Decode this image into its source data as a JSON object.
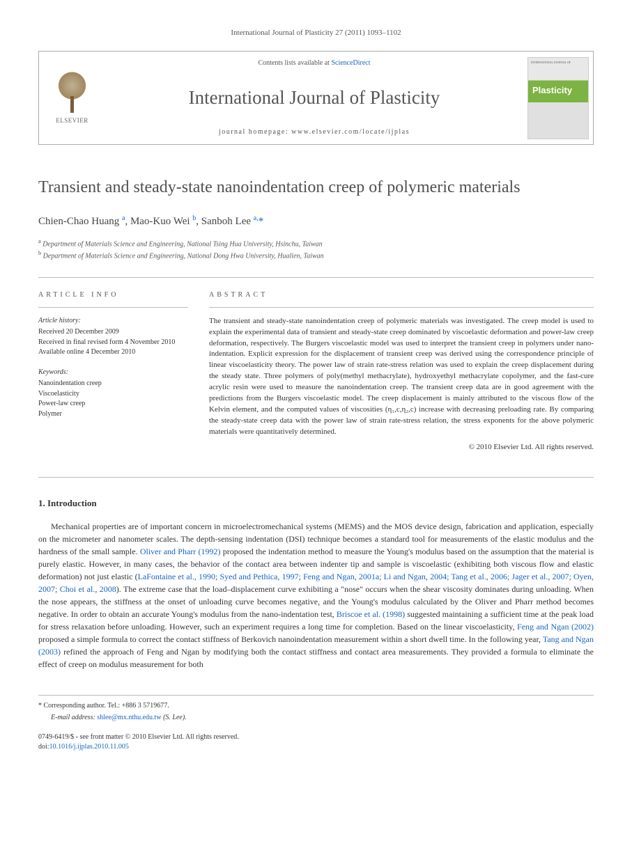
{
  "citation": "International Journal of Plasticity 27 (2011) 1093–1102",
  "header": {
    "contents_prefix": "Contents lists available at ",
    "contents_link": "ScienceDirect",
    "journal_name": "International Journal of Plasticity",
    "homepage_label": "journal homepage: www.elsevier.com/locate/ijplas",
    "elsevier_label": "ELSEVIER",
    "cover_brand": "Plasticity"
  },
  "article": {
    "title": "Transient and steady-state nanoindentation creep of polymeric materials",
    "authors_html": "Chien-Chao Huang <sup>a</sup>, Mao-Kuo Wei <sup>b</sup>, Sanboh Lee <sup>a,</sup><a href=\"#\">*</a>",
    "affiliations": [
      {
        "sup": "a",
        "text": "Department of Materials Science and Engineering, National Tsing Hua University, Hsinchu, Taiwan"
      },
      {
        "sup": "b",
        "text": "Department of Materials Science and Engineering, National Dong Hwa University, Hualien, Taiwan"
      }
    ]
  },
  "info": {
    "heading": "ARTICLE INFO",
    "history_label": "Article history:",
    "history": [
      "Received 20 December 2009",
      "Received in final revised form 4 November 2010",
      "Available online 4 December 2010"
    ],
    "keywords_label": "Keywords:",
    "keywords": [
      "Nanoindentation creep",
      "Viscoelasticity",
      "Power-law creep",
      "Polymer"
    ]
  },
  "abstract": {
    "heading": "ABSTRACT",
    "text": "The transient and steady-state nanoindentation creep of polymeric materials was investigated. The creep model is used to explain the experimental data of transient and steady-state creep dominated by viscoelastic deformation and power-law creep deformation, respectively. The Burgers viscoelastic model was used to interpret the transient creep in polymers under nano-indentation. Explicit expression for the displacement of transient creep was derived using the correspondence principle of linear viscoelasticity theory. The power law of strain rate-stress relation was used to explain the creep displacement during the steady state. Three polymers of poly(methyl methacrylate), hydroxyethyl methacrylate copolymer, and the fast-cure acrylic resin were used to measure the nanoindentation creep. The transient creep data are in good agreement with the predictions from the Burgers viscoelastic model. The creep displacement is mainly attributed to the viscous flow of the Kelvin element, and the computed values of viscosities (η₁,c,η₂,c) increase with decreasing preloading rate. By comparing the steady-state creep data with the power law of strain rate-stress relation, the stress exponents for the above polymeric materials were quantitatively determined.",
    "copyright": "© 2010 Elsevier Ltd. All rights reserved."
  },
  "sections": {
    "intro_heading": "1. Introduction",
    "intro_text": "Mechanical properties are of important concern in microelectromechanical systems (MEMS) and the MOS device design, fabrication and application, especially on the micrometer and nanometer scales. The depth-sensing indentation (DSI) technique becomes a standard tool for measurements of the elastic modulus and the hardness of the small sample. <a href=\"#\">Oliver and Pharr (1992)</a> proposed the indentation method to measure the Young's modulus based on the assumption that the material is purely elastic. However, in many cases, the behavior of the contact area between indenter tip and sample is viscoelastic (exhibiting both viscous flow and elastic deformation) not just elastic (<a href=\"#\">LaFontaine et al., 1990; Syed and Pethica, 1997; Feng and Ngan, 2001a; Li and Ngan, 2004; Tang et al., 2006; Jager et al., 2007; Oyen, 2007; Choi et al., 2008</a>). The extreme case that the load–displacement curve exhibiting a \"nose\" occurs when the shear viscosity dominates during unloading. When the nose appears, the stiffness at the onset of unloading curve becomes negative, and the Young's modulus calculated by the Oliver and Pharr method becomes negative. In order to obtain an accurate Young's modulus from the nano-indentation test, <a href=\"#\">Briscoe et al. (1998)</a> suggested maintaining a sufficient time at the peak load for stress relaxation before unloading. However, such an experiment requires a long time for completion. Based on the linear viscoelasticity, <a href=\"#\">Feng and Ngan (2002)</a> proposed a simple formula to correct the contact stiffness of Berkovich nanoindentation measurement within a short dwell time. In the following year, <a href=\"#\">Tang and Ngan (2003)</a> refined the approach of Feng and Ngan by modifying both the contact stiffness and contact area measurements. They provided a formula to eliminate the effect of creep on modulus measurement for both"
  },
  "footer": {
    "corresponding": "* Corresponding author. Tel.: +886 3 5719677.",
    "email_label": "E-mail address: ",
    "email": "shlee@mx.nthu.edu.tw",
    "email_suffix": " (S. Lee).",
    "copyright_line1": "0749-6419/$ - see front matter © 2010 Elsevier Ltd. All rights reserved.",
    "doi_prefix": "doi:",
    "doi": "10.1016/j.ijplas.2010.11.005"
  },
  "colors": {
    "link": "#1565c0",
    "text": "#333333",
    "muted": "#555555",
    "border": "#bbbbbb",
    "cover_green": "#7cb342"
  }
}
